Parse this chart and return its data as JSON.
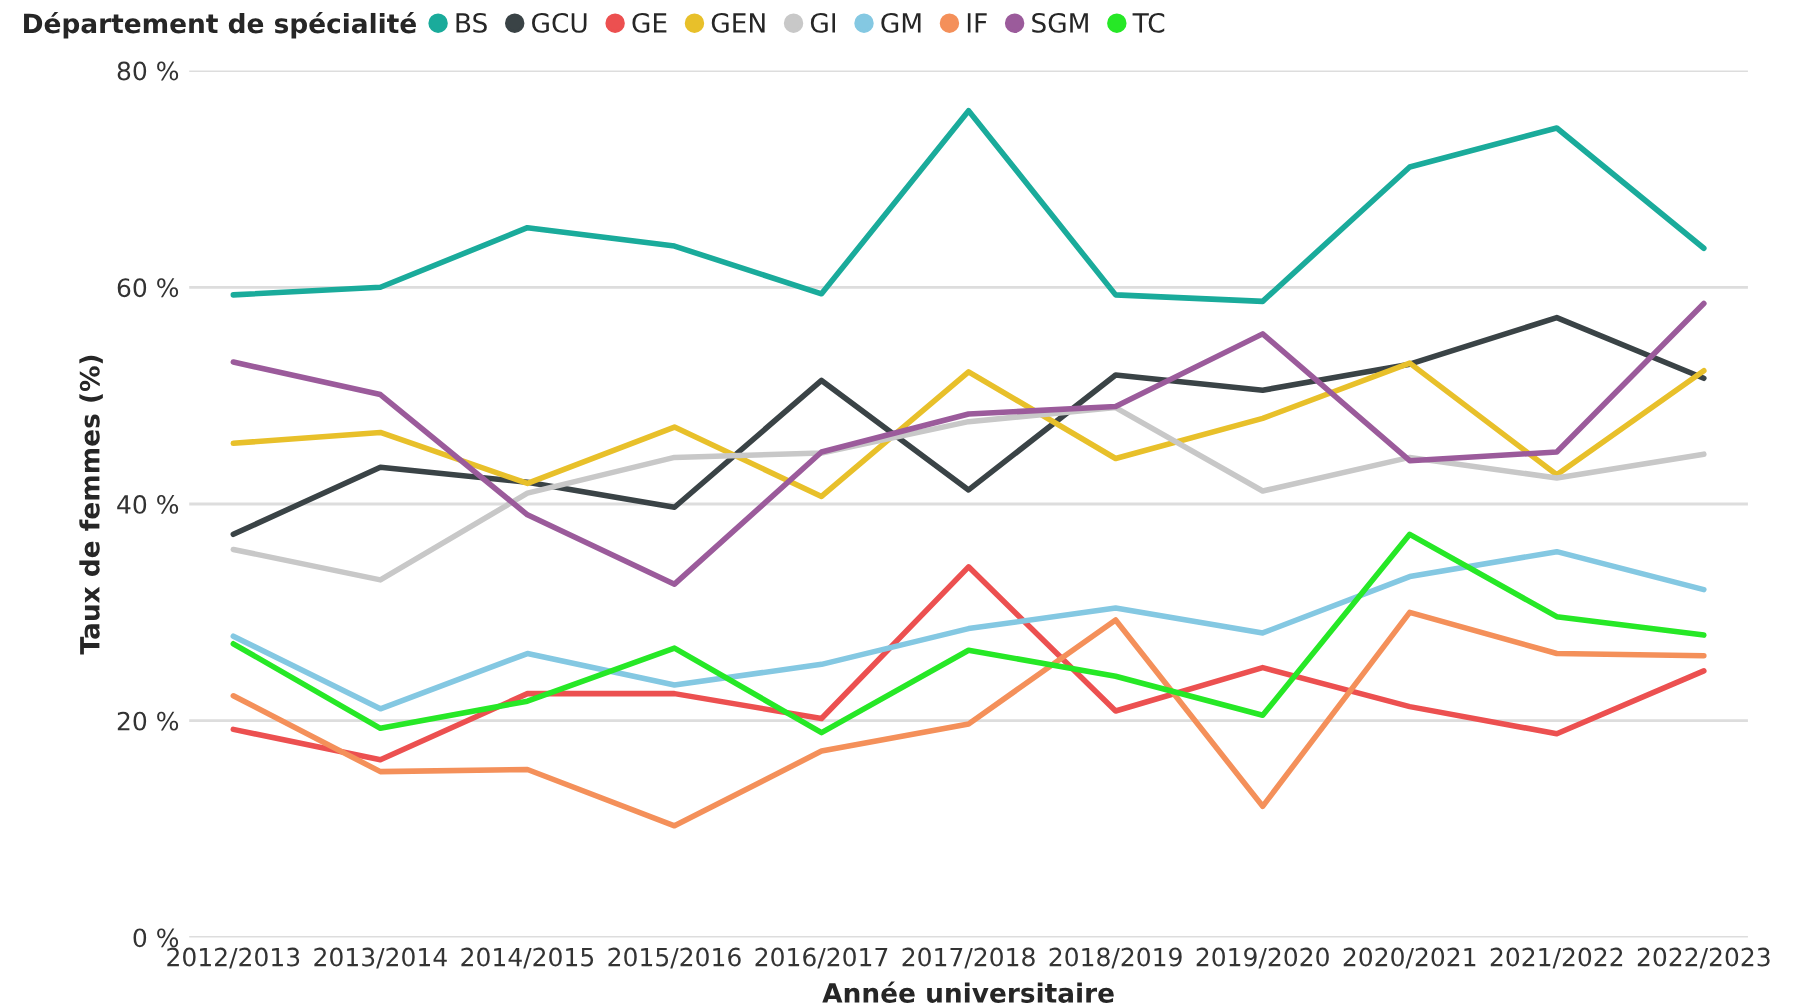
{
  "chart_data": {
    "type": "line",
    "xlabel": "Année universitaire",
    "ylabel": "Taux de femmes (%)",
    "legend_title": "Département de spécialité",
    "legend": "top left",
    "grid": "y",
    "marker": "none",
    "line_style": "solid",
    "categories": [
      "2012/2013",
      "2013/2014",
      "2014/2015",
      "2015/2016",
      "2016/2017",
      "2017/2018",
      "2018/2019",
      "2019/2020",
      "2020/2021",
      "2021/2022",
      "2022/2023"
    ],
    "ylim": [
      0,
      80
    ],
    "yticks": [
      {
        "value": 0,
        "label": "0 %"
      },
      {
        "value": 20,
        "label": "20 %"
      },
      {
        "value": 40,
        "label": "40 %"
      },
      {
        "value": 60,
        "label": "60 %"
      },
      {
        "value": 80,
        "label": "80 %"
      }
    ],
    "series": [
      {
        "name": "BS",
        "color": "#1aab9b",
        "values": [
          59.3,
          60.0,
          65.5,
          63.8,
          59.4,
          76.3,
          59.3,
          58.7,
          71.1,
          74.7,
          63.6
        ]
      },
      {
        "name": "GCU",
        "color": "#3a4346",
        "values": [
          37.2,
          43.4,
          42.0,
          39.7,
          51.4,
          41.3,
          51.9,
          50.5,
          52.9,
          57.2,
          51.6
        ]
      },
      {
        "name": "GE",
        "color": "#ec5050",
        "values": [
          19.2,
          16.4,
          22.5,
          22.5,
          20.2,
          34.2,
          20.9,
          24.9,
          21.3,
          18.8,
          24.6
        ]
      },
      {
        "name": "GEN",
        "color": "#e8c02a",
        "values": [
          45.6,
          46.6,
          41.9,
          47.1,
          40.7,
          52.2,
          44.2,
          47.9,
          53.0,
          42.7,
          52.3
        ]
      },
      {
        "name": "GI",
        "color": "#c8c8c8",
        "values": [
          35.8,
          33.0,
          41.0,
          44.3,
          44.7,
          47.6,
          48.9,
          41.2,
          44.3,
          42.4,
          44.6
        ]
      },
      {
        "name": "GM",
        "color": "#84c8e2",
        "values": [
          27.8,
          21.1,
          26.2,
          23.3,
          25.2,
          28.5,
          30.4,
          28.1,
          33.3,
          35.6,
          32.1
        ]
      },
      {
        "name": "IF",
        "color": "#f4905a",
        "values": [
          22.3,
          15.3,
          15.5,
          10.3,
          17.2,
          19.7,
          29.3,
          12.1,
          30.0,
          26.2,
          26.0
        ]
      },
      {
        "name": "SGM",
        "color": "#9b5b9b",
        "values": [
          53.1,
          50.1,
          39.0,
          32.6,
          44.8,
          48.3,
          49.0,
          55.7,
          44.0,
          44.8,
          58.5
        ]
      },
      {
        "name": "TC",
        "color": "#26e826",
        "values": [
          27.1,
          19.3,
          21.8,
          26.7,
          18.9,
          26.5,
          24.1,
          20.5,
          37.2,
          29.6,
          27.9
        ]
      }
    ]
  }
}
